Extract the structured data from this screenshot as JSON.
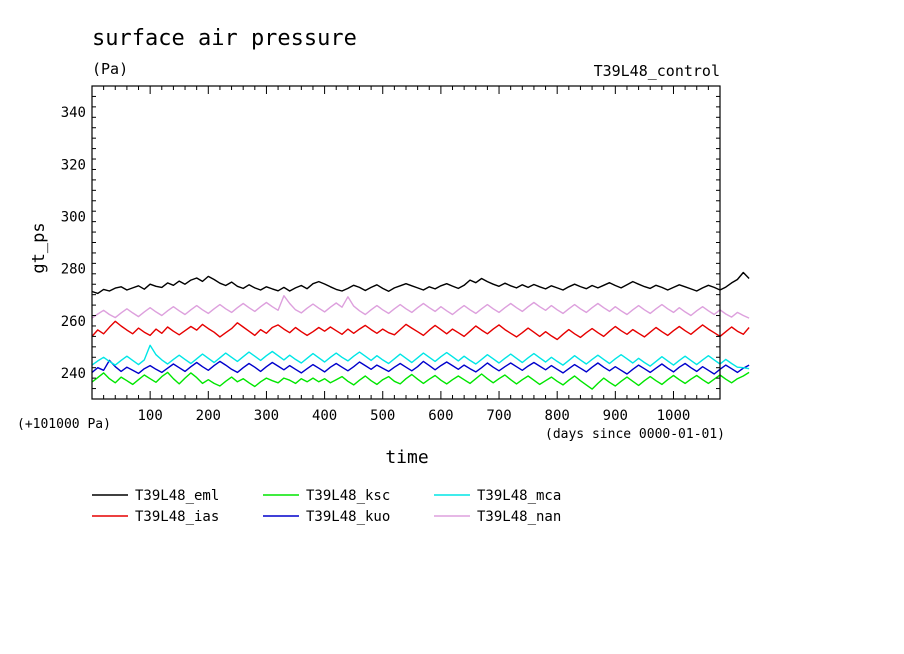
{
  "chart_data": {
    "type": "line",
    "title": "surface air pressure",
    "units": "(Pa)",
    "run_label": "T39L48_control",
    "ylabel": "gt_ps",
    "xlabel": "time",
    "offset_label": "(+101000 Pa)",
    "x_units_label": "(days since 0000-01-01)",
    "xlim": [
      0,
      1080
    ],
    "ylim": [
      230,
      350
    ],
    "xticks": [
      100,
      200,
      300,
      400,
      500,
      600,
      700,
      800,
      900,
      1000
    ],
    "yticks": [
      240,
      260,
      280,
      300,
      320,
      340
    ],
    "x_step_days": 10,
    "grid": false,
    "legend_position": "bottom-left",
    "series": [
      {
        "name": "T39L48_eml",
        "color": "#000000",
        "values": [
          271.2,
          270.5,
          272.0,
          271.4,
          272.5,
          273.0,
          271.8,
          272.6,
          273.4,
          272.1,
          274.0,
          273.2,
          272.8,
          274.5,
          273.6,
          275.2,
          274.0,
          275.6,
          276.4,
          275.1,
          277.0,
          275.8,
          274.4,
          273.5,
          274.8,
          273.2,
          272.4,
          273.8,
          272.6,
          271.8,
          273.0,
          272.2,
          271.5,
          272.8,
          271.4,
          272.6,
          273.5,
          272.3,
          274.2,
          275.0,
          274.1,
          273.0,
          272.0,
          271.4,
          272.4,
          273.6,
          272.8,
          271.6,
          272.8,
          273.8,
          272.4,
          271.3,
          272.6,
          273.4,
          274.2,
          273.4,
          272.6,
          271.8,
          273.0,
          272.2,
          273.4,
          274.2,
          273.3,
          272.4,
          273.6,
          275.6,
          274.6,
          276.2,
          275.0,
          274.0,
          273.2,
          274.4,
          273.4,
          272.6,
          273.8,
          272.8,
          273.9,
          273.0,
          272.2,
          273.4,
          272.6,
          271.8,
          273.0,
          274.0,
          273.1,
          272.3,
          273.5,
          272.6,
          273.6,
          274.6,
          273.5,
          272.6,
          273.8,
          275.0,
          274.0,
          273.1,
          272.4,
          273.6,
          272.8,
          271.8,
          272.8,
          273.8,
          273.0,
          272.2,
          271.4,
          272.6,
          273.6,
          272.8,
          271.8,
          272.9,
          274.5,
          275.8,
          278.5,
          276.2
        ]
      },
      {
        "name": "T39L48_ias",
        "color": "#e60000",
        "values": [
          254.0,
          256.5,
          255.0,
          257.5,
          259.8,
          258.0,
          256.4,
          255.0,
          257.2,
          255.6,
          254.4,
          256.8,
          255.2,
          257.6,
          256.0,
          254.6,
          256.2,
          257.8,
          256.4,
          258.6,
          257.0,
          255.6,
          253.8,
          255.4,
          257.0,
          259.2,
          257.6,
          256.0,
          254.4,
          256.6,
          255.2,
          257.4,
          258.4,
          256.8,
          255.4,
          257.4,
          255.8,
          254.4,
          255.8,
          257.4,
          256.0,
          257.6,
          256.2,
          254.8,
          256.8,
          255.2,
          256.8,
          258.2,
          256.6,
          255.2,
          256.8,
          255.4,
          254.6,
          256.6,
          258.6,
          257.2,
          255.8,
          254.4,
          256.4,
          258.2,
          256.6,
          255.0,
          256.8,
          255.4,
          254.0,
          256.0,
          258.0,
          256.4,
          255.0,
          256.8,
          258.4,
          256.6,
          255.2,
          253.8,
          255.4,
          257.2,
          255.6,
          254.0,
          255.8,
          254.2,
          252.8,
          254.8,
          256.6,
          255.0,
          253.6,
          255.4,
          257.0,
          255.4,
          254.0,
          256.0,
          257.8,
          256.2,
          254.8,
          256.6,
          255.2,
          253.8,
          255.6,
          257.4,
          255.8,
          254.4,
          256.2,
          257.8,
          256.2,
          254.8,
          256.6,
          258.4,
          256.8,
          255.4,
          254.0,
          255.8,
          257.6,
          256.0,
          254.8,
          257.4
        ]
      },
      {
        "name": "T39L48_ksc",
        "color": "#00e600",
        "values": [
          236.5,
          238.2,
          240.0,
          237.8,
          236.2,
          238.4,
          237.0,
          235.6,
          237.4,
          239.2,
          237.8,
          236.4,
          238.6,
          240.2,
          237.8,
          235.8,
          238.0,
          240.0,
          238.2,
          236.0,
          237.4,
          236.0,
          235.0,
          236.8,
          238.4,
          236.6,
          237.8,
          236.2,
          234.8,
          236.6,
          238.0,
          237.0,
          236.2,
          238.0,
          237.2,
          236.0,
          237.8,
          236.6,
          238.0,
          236.6,
          237.8,
          236.2,
          237.4,
          238.6,
          236.8,
          235.4,
          237.2,
          238.8,
          237.0,
          235.6,
          237.4,
          238.6,
          236.8,
          235.8,
          237.8,
          239.4,
          237.6,
          236.0,
          237.6,
          239.0,
          237.2,
          235.8,
          237.4,
          238.8,
          237.4,
          236.0,
          237.8,
          239.6,
          237.8,
          236.2,
          237.8,
          239.2,
          237.4,
          235.8,
          237.4,
          238.8,
          237.2,
          235.6,
          237.0,
          238.4,
          236.8,
          235.4,
          237.2,
          238.8,
          237.0,
          235.4,
          233.8,
          236.0,
          238.0,
          236.4,
          235.0,
          236.8,
          238.4,
          236.8,
          235.2,
          237.0,
          238.6,
          237.0,
          235.6,
          237.4,
          239.0,
          237.4,
          236.0,
          237.6,
          239.0,
          237.4,
          236.0,
          237.6,
          239.2,
          237.6,
          236.2,
          237.8,
          238.8,
          240.2
        ]
      },
      {
        "name": "T39L48_kuo",
        "color": "#0000cc",
        "values": [
          240.2,
          242.0,
          241.0,
          244.8,
          242.4,
          240.6,
          242.2,
          241.0,
          239.8,
          241.6,
          242.8,
          241.4,
          240.2,
          241.8,
          243.4,
          242.0,
          240.6,
          242.4,
          244.0,
          242.4,
          241.0,
          242.8,
          244.4,
          243.0,
          241.4,
          240.2,
          242.0,
          243.6,
          242.2,
          240.6,
          242.4,
          244.0,
          242.6,
          241.2,
          242.8,
          241.4,
          240.0,
          241.6,
          243.2,
          241.8,
          240.4,
          242.2,
          243.6,
          242.2,
          240.8,
          242.4,
          244.2,
          242.8,
          241.4,
          243.0,
          241.8,
          240.6,
          242.2,
          243.6,
          242.2,
          240.8,
          242.4,
          244.4,
          242.8,
          241.2,
          242.8,
          244.2,
          242.8,
          241.4,
          243.0,
          241.6,
          240.4,
          242.0,
          243.8,
          242.2,
          240.8,
          242.4,
          243.8,
          242.4,
          241.0,
          242.6,
          244.0,
          242.6,
          241.2,
          242.8,
          241.4,
          240.0,
          241.6,
          243.2,
          241.8,
          240.4,
          242.2,
          243.8,
          242.2,
          240.8,
          242.4,
          241.0,
          239.6,
          241.4,
          243.0,
          241.6,
          240.2,
          241.8,
          243.4,
          241.8,
          240.4,
          242.2,
          243.6,
          242.0,
          240.6,
          242.4,
          241.0,
          239.6,
          241.4,
          243.0,
          241.6,
          240.2,
          241.8,
          243.0
        ]
      },
      {
        "name": "T39L48_mca",
        "color": "#00e6e6",
        "values": [
          243.0,
          244.6,
          246.0,
          244.4,
          243.0,
          244.8,
          246.4,
          244.8,
          243.2,
          245.0,
          250.6,
          247.0,
          245.0,
          243.4,
          245.2,
          246.8,
          245.2,
          243.6,
          245.4,
          247.2,
          245.6,
          244.0,
          245.8,
          247.6,
          246.0,
          244.4,
          246.2,
          248.0,
          246.4,
          244.8,
          246.6,
          248.2,
          246.6,
          245.0,
          246.8,
          245.2,
          243.8,
          245.6,
          247.4,
          245.8,
          244.2,
          246.0,
          247.6,
          246.0,
          244.6,
          246.4,
          248.0,
          246.4,
          244.8,
          246.6,
          245.0,
          243.6,
          245.4,
          247.2,
          245.6,
          244.0,
          245.8,
          247.6,
          246.0,
          244.4,
          246.2,
          247.8,
          246.2,
          244.6,
          246.4,
          244.8,
          243.4,
          245.2,
          247.0,
          245.4,
          243.8,
          245.6,
          247.2,
          245.6,
          244.0,
          245.8,
          247.4,
          245.8,
          244.2,
          246.0,
          244.4,
          243.0,
          244.8,
          246.6,
          245.0,
          243.4,
          245.2,
          246.8,
          245.2,
          243.6,
          245.4,
          247.0,
          245.4,
          243.8,
          245.6,
          244.0,
          242.6,
          244.4,
          246.2,
          244.6,
          243.0,
          244.8,
          246.4,
          244.8,
          243.2,
          245.0,
          246.6,
          245.0,
          243.4,
          245.2,
          243.6,
          242.2,
          242.0,
          241.6
        ]
      },
      {
        "name": "T39L48_nan",
        "color": "#dda0dd",
        "values": [
          261.0,
          262.6,
          264.0,
          262.4,
          261.2,
          263.0,
          264.6,
          263.0,
          261.6,
          263.4,
          265.0,
          263.4,
          262.0,
          263.8,
          265.4,
          263.8,
          262.4,
          264.2,
          265.8,
          264.2,
          262.8,
          264.6,
          266.2,
          264.6,
          263.2,
          265.0,
          266.6,
          265.0,
          263.6,
          265.4,
          267.0,
          265.4,
          264.0,
          269.6,
          266.6,
          264.2,
          263.0,
          264.8,
          266.4,
          264.8,
          263.4,
          265.2,
          266.8,
          265.2,
          269.2,
          265.6,
          263.8,
          262.4,
          264.2,
          265.8,
          264.2,
          262.8,
          264.6,
          266.2,
          264.6,
          263.2,
          265.0,
          266.6,
          265.0,
          263.6,
          265.4,
          263.8,
          262.4,
          264.2,
          265.8,
          264.2,
          262.8,
          264.6,
          266.2,
          264.6,
          263.2,
          265.0,
          266.6,
          265.0,
          263.6,
          265.4,
          267.0,
          265.4,
          264.0,
          265.8,
          264.2,
          262.8,
          264.6,
          266.2,
          264.6,
          263.2,
          265.0,
          266.6,
          265.0,
          263.6,
          265.4,
          263.8,
          262.4,
          264.2,
          265.8,
          264.2,
          262.8,
          264.6,
          266.2,
          264.6,
          263.2,
          265.0,
          263.4,
          262.0,
          263.8,
          265.4,
          263.8,
          262.4,
          264.2,
          262.6,
          261.4,
          263.2,
          262.0,
          261.0
        ]
      }
    ]
  }
}
